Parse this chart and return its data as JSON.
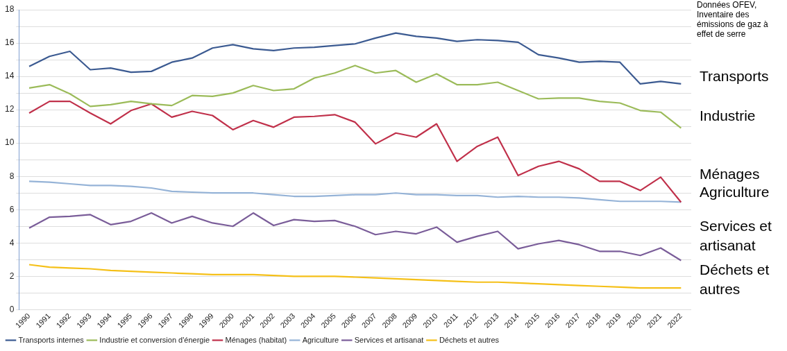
{
  "chart_data": {
    "type": "line",
    "categories": [
      "1990",
      "1991",
      "1992",
      "1993",
      "1994",
      "1995",
      "1996",
      "1997",
      "1998",
      "1999",
      "2000",
      "2001",
      "2002",
      "2003",
      "2004",
      "2005",
      "2006",
      "2007",
      "2008",
      "2009",
      "2010",
      "2011",
      "2012",
      "2013",
      "2014",
      "2015",
      "2016",
      "2017",
      "2018",
      "2019",
      "2020",
      "2021",
      "2022"
    ],
    "series": [
      {
        "name": "Transports internes",
        "color": "#3b5a91",
        "values": [
          14.6,
          15.2,
          15.5,
          14.4,
          14.5,
          14.25,
          14.3,
          14.85,
          15.1,
          15.7,
          15.9,
          15.65,
          15.55,
          15.7,
          15.75,
          15.85,
          15.95,
          16.3,
          16.6,
          16.4,
          16.3,
          16.1,
          16.2,
          16.15,
          16.05,
          15.3,
          15.1,
          14.85,
          14.9,
          14.85,
          13.55,
          13.7,
          13.55
        ]
      },
      {
        "name": "Industrie et conversion d'énergie",
        "color": "#9bbb59",
        "values": [
          13.3,
          13.5,
          12.95,
          12.2,
          12.3,
          12.5,
          12.35,
          12.25,
          12.85,
          12.8,
          13.0,
          13.45,
          13.15,
          13.25,
          13.9,
          14.2,
          14.65,
          14.2,
          14.35,
          13.65,
          14.15,
          13.5,
          13.5,
          13.65,
          13.15,
          12.65,
          12.7,
          12.7,
          12.5,
          12.4,
          11.95,
          11.85,
          10.9
        ]
      },
      {
        "name": "Ménages (habitat)",
        "color": "#c0304a",
        "values": [
          11.8,
          12.5,
          12.5,
          11.8,
          11.15,
          11.95,
          12.35,
          11.55,
          11.9,
          11.65,
          10.8,
          11.35,
          10.95,
          11.55,
          11.6,
          11.7,
          11.25,
          9.95,
          10.6,
          10.35,
          11.15,
          8.9,
          9.8,
          10.35,
          8.05,
          8.6,
          8.9,
          8.45,
          7.7,
          7.7,
          7.15,
          7.95,
          6.45
        ]
      },
      {
        "name": "Agriculture",
        "color": "#95b3d7",
        "values": [
          7.7,
          7.65,
          7.55,
          7.45,
          7.45,
          7.4,
          7.3,
          7.1,
          7.05,
          7.0,
          7.0,
          7.0,
          6.9,
          6.8,
          6.8,
          6.85,
          6.9,
          6.9,
          7.0,
          6.9,
          6.9,
          6.85,
          6.85,
          6.75,
          6.8,
          6.75,
          6.75,
          6.7,
          6.6,
          6.5,
          6.5,
          6.5,
          6.45
        ]
      },
      {
        "name": "Services et artisanat",
        "color": "#7a5d99",
        "values": [
          4.9,
          5.55,
          5.6,
          5.7,
          5.1,
          5.3,
          5.8,
          5.2,
          5.6,
          5.2,
          5.0,
          5.8,
          5.05,
          5.4,
          5.3,
          5.35,
          5.0,
          4.5,
          4.7,
          4.55,
          4.95,
          4.05,
          4.4,
          4.7,
          3.65,
          3.95,
          4.15,
          3.9,
          3.5,
          3.5,
          3.25,
          3.7,
          2.95
        ]
      },
      {
        "name": "Déchets et autres",
        "color": "#f5c018",
        "values": [
          2.7,
          2.55,
          2.5,
          2.45,
          2.35,
          2.3,
          2.25,
          2.2,
          2.15,
          2.1,
          2.1,
          2.1,
          2.05,
          2.0,
          2.0,
          2.0,
          1.95,
          1.9,
          1.85,
          1.8,
          1.75,
          1.7,
          1.65,
          1.65,
          1.6,
          1.55,
          1.5,
          1.45,
          1.4,
          1.35,
          1.3,
          1.3,
          1.3
        ]
      }
    ],
    "ylim": [
      0,
      18
    ],
    "yticks": [
      0,
      {
        "value": 1,
        "label": null
      },
      2,
      {
        "value": 3,
        "label": null
      },
      4,
      {
        "value": 5,
        "label": null
      },
      6,
      {
        "value": 7,
        "label": null
      },
      8,
      {
        "value": 9,
        "label": null
      },
      10,
      {
        "value": 11,
        "label": null
      },
      12,
      {
        "value": 13,
        "label": null
      },
      14,
      {
        "value": 15,
        "label": null
      },
      16,
      {
        "value": 17,
        "label": null
      },
      18
    ],
    "grid": "y",
    "legend": "bottom",
    "marker": "none",
    "line_style": "solid",
    "annotations": [
      "Données OFEV, Inventaire des émissions de gaz à effet de serre",
      "Transports",
      "Industrie",
      "Ménages",
      "Agriculture",
      "Services et artisanat",
      "Déchets et autres"
    ]
  }
}
